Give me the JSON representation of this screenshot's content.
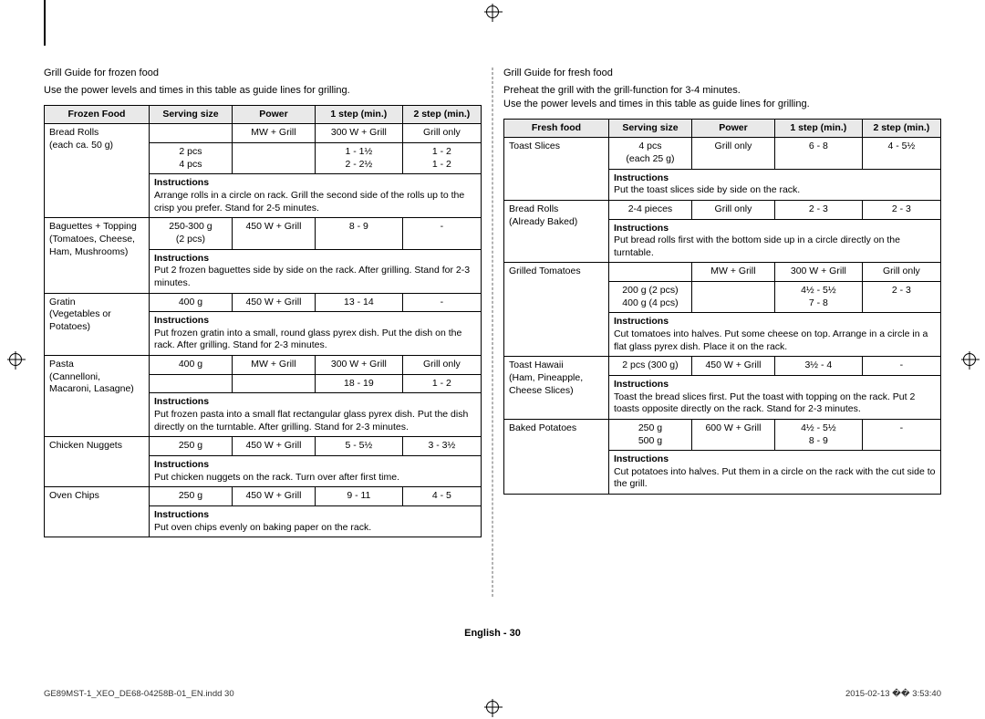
{
  "page_number_label": "English - 30",
  "footer_left": "GE89MST-1_XEO_DE68-04258B-01_EN.indd   30",
  "footer_right": "2015-02-13   �� 3:53:40",
  "left": {
    "title": "Grill Guide for frozen food",
    "intro": "Use the power levels and times in this table as guide lines for grilling.",
    "headers": [
      "Frozen Food",
      "Serving size",
      "Power",
      "1 step (min.)",
      "2 step (min.)"
    ],
    "sections": [
      {
        "rows": [
          {
            "c0": "Bread Rolls",
            "c1": "",
            "c2": "MW + Grill",
            "c3": "300 W + Grill",
            "c4": "Grill only",
            "name_rowspan": 2
          },
          {
            "c1": "2 pcs\n4 pcs",
            "c2": "",
            "c3": "1 - 1½\n2 - 2½",
            "c4": "1 - 2\n1 - 2",
            "skip_name": true
          }
        ],
        "name_extra": "(each ca. 50 g)",
        "instr": "Arrange rolls in a circle on rack. Grill the second side of the rolls up to the crisp you prefer. Stand for 2-5 minutes."
      },
      {
        "rows": [
          {
            "c0": "Baguettes + Topping\n(Tomatoes, Cheese, Ham, Mushrooms)",
            "c1": "250-300 g\n(2 pcs)",
            "c2": "450 W + Grill",
            "c3": "8 - 9",
            "c4": "-"
          }
        ],
        "instr": "Put 2 frozen baguettes side by side on the rack. After grilling. Stand for 2-3 minutes."
      },
      {
        "rows": [
          {
            "c0": "Gratin\n(Vegetables or Potatoes)",
            "c1": "400 g",
            "c2": "450 W + Grill",
            "c3": "13 - 14",
            "c4": "-"
          }
        ],
        "instr": "Put frozen gratin into a small, round glass pyrex dish. Put the dish on the rack. After grilling. Stand for 2-3 minutes."
      },
      {
        "rows": [
          {
            "c0": "Pasta\n(Cannelloni, Macaroni, Lasagne)",
            "c1": "400 g",
            "c2": "MW + Grill",
            "c3": "300 W + Grill",
            "c4": "Grill only",
            "name_rowspan": 2
          },
          {
            "c1": "",
            "c2": "",
            "c3": "18 - 19",
            "c4": "1 - 2",
            "skip_name": true
          }
        ],
        "instr": "Put frozen pasta into a small flat rectangular glass pyrex dish. Put the dish directly on the turntable. After grilling. Stand for 2-3 minutes."
      },
      {
        "rows": [
          {
            "c0": "Chicken Nuggets",
            "c1": "250 g",
            "c2": "450 W + Grill",
            "c3": "5 - 5½",
            "c4": "3 - 3½"
          }
        ],
        "instr": "Put chicken nuggets on the rack. Turn over after first time."
      },
      {
        "rows": [
          {
            "c0": "Oven Chips",
            "c1": "250 g",
            "c2": "450 W + Grill",
            "c3": "9 - 11",
            "c4": "4 - 5"
          }
        ],
        "instr": "Put oven chips evenly on baking paper on the rack."
      }
    ]
  },
  "right": {
    "title": "Grill Guide for fresh food",
    "intro": "Preheat the grill with the grill-function for 3-4 minutes.\nUse the power levels and times in this table as guide lines for grilling.",
    "headers": [
      "Fresh food",
      "Serving size",
      "Power",
      "1 step (min.)",
      "2 step (min.)"
    ],
    "sections": [
      {
        "rows": [
          {
            "c0": "Toast Slices",
            "c1": "4 pcs\n(each 25 g)",
            "c2": "Grill only",
            "c3": "6 - 8",
            "c4": "4 - 5½"
          }
        ],
        "instr": "Put the toast slices side by side on the rack."
      },
      {
        "rows": [
          {
            "c0": "Bread Rolls\n(Already Baked)",
            "c1": "2-4 pieces",
            "c2": "Grill only",
            "c3": "2 - 3",
            "c4": "2 - 3"
          }
        ],
        "instr": "Put bread rolls first with the bottom side up in a circle directly on the turntable."
      },
      {
        "rows": [
          {
            "c0": "Grilled Tomatoes",
            "c1": "",
            "c2": "MW + Grill",
            "c3": "300 W + Grill",
            "c4": "Grill only",
            "name_rowspan": 2
          },
          {
            "c1": "200 g (2 pcs)\n400 g (4 pcs)",
            "c2": "",
            "c3": "4½ - 5½\n7 - 8",
            "c4": "2 - 3",
            "skip_name": true
          }
        ],
        "instr": "Cut tomatoes into halves. Put some cheese on top. Arrange in a circle in a flat glass pyrex dish. Place it on the rack."
      },
      {
        "rows": [
          {
            "c0": "Toast Hawaii\n(Ham, Pineapple, Cheese Slices)",
            "c1": "2 pcs (300 g)",
            "c2": "450 W + Grill",
            "c3": "3½ - 4",
            "c4": "-"
          }
        ],
        "instr": "Toast the bread slices first. Put the toast with topping on the rack. Put 2 toasts opposite directly on the rack. Stand for 2-3 minutes."
      },
      {
        "rows": [
          {
            "c0": "Baked Potatoes",
            "c1": "250 g\n500 g",
            "c2": "600 W + Grill",
            "c3": "4½ - 5½\n8 - 9",
            "c4": "-"
          }
        ],
        "instr": "Cut potatoes into halves. Put them in a circle on the rack with the cut side to the grill."
      }
    ]
  }
}
